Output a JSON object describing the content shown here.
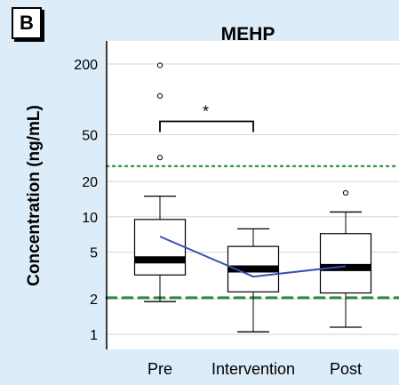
{
  "panel_label": "B",
  "chart_data": {
    "type": "box",
    "title": "MEHP",
    "ylabel": "Concentration (ng/mL)",
    "xlabel": "",
    "yscale": "log",
    "ylim": [
      0.85,
      300
    ],
    "yticks": [
      1,
      2,
      5,
      10,
      20,
      50,
      200
    ],
    "ytick_labels": [
      "1",
      "2",
      "5",
      "10",
      "20",
      "50",
      "200"
    ],
    "grid": true,
    "categories": [
      "Pre",
      "Intervention",
      "Post"
    ],
    "boxes": [
      {
        "category": "Pre",
        "whisker_low": 1.9,
        "q1": 3.2,
        "median": 4.3,
        "q3": 9.5,
        "whisker_high": 15,
        "outliers": [
          32,
          107,
          195
        ]
      },
      {
        "category": "Intervention",
        "whisker_low": 1.05,
        "q1": 2.3,
        "median": 3.6,
        "q3": 5.6,
        "whisker_high": 7.9,
        "outliers": []
      },
      {
        "category": "Post",
        "whisker_low": 1.15,
        "q1": 2.25,
        "median": 3.7,
        "q3": 7.2,
        "whisker_high": 11,
        "outliers": [
          16
        ]
      }
    ],
    "mean_line": {
      "color": "#3a4fae",
      "values": [
        6.8,
        3.1,
        3.8
      ]
    },
    "reference_lines": [
      {
        "style": "dotted",
        "color": "#3f9a4a",
        "value": 27
      },
      {
        "style": "dashed",
        "color": "#2f8a3a",
        "value": 2.05
      }
    ],
    "annotations": [
      {
        "text": "*",
        "between": [
          "Pre",
          "Intervention"
        ],
        "bracket_at": 65
      }
    ]
  }
}
